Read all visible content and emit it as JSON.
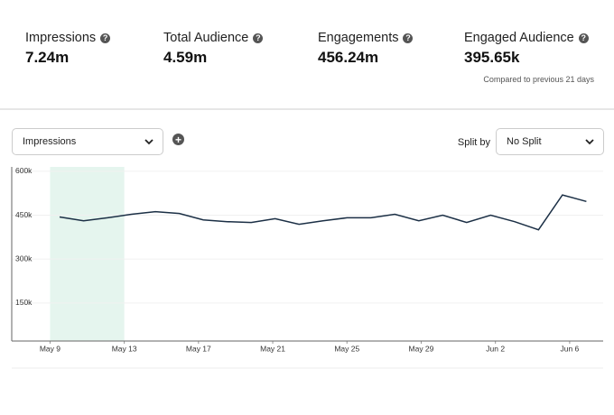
{
  "metrics": [
    {
      "label": "Impressions",
      "value": "7.24m"
    },
    {
      "label": "Total Audience",
      "value": "4.59m"
    },
    {
      "label": "Engagements",
      "value": "456.24m"
    },
    {
      "label": "Engaged Audience",
      "value": "395.65k"
    }
  ],
  "comparison_note": "Compared to previous 21 days",
  "metric_select": "Impressions",
  "split_label": "Split by",
  "split_select": "No Split",
  "chart_data": {
    "type": "line",
    "values": [
      444000,
      431000,
      441000,
      453000,
      462000,
      456000,
      434000,
      428000,
      425000,
      438000,
      419000,
      431000,
      441000,
      441000,
      453000,
      431000,
      450000,
      425000,
      450000,
      428000,
      400000,
      519000,
      497000
    ],
    "color": "#1b2f45",
    "xlim": [
      -2,
      22.7
    ],
    "xticks": [
      {
        "value": -0.4,
        "label": "May 9"
      },
      {
        "value": 2.7,
        "label": "May 13"
      },
      {
        "value": 5.8,
        "label": "May 17"
      },
      {
        "value": 8.9,
        "label": "May 21"
      },
      {
        "value": 12.0,
        "label": "May 25"
      },
      {
        "value": 15.1,
        "label": "May 29"
      },
      {
        "value": 18.2,
        "label": "Jun 2"
      },
      {
        "value": 21.3,
        "label": "Jun 6"
      }
    ],
    "ylim": [
      20000,
      615000
    ],
    "yticks": [
      {
        "value": 150000,
        "label": "150k"
      },
      {
        "value": 300000,
        "label": "300k"
      },
      {
        "value": 450000,
        "label": "450k"
      },
      {
        "value": 600000,
        "label": "600k"
      }
    ],
    "highlight": [
      -0.4,
      2.7
    ],
    "highlight_color": "#e5f5ee",
    "grid": true
  }
}
